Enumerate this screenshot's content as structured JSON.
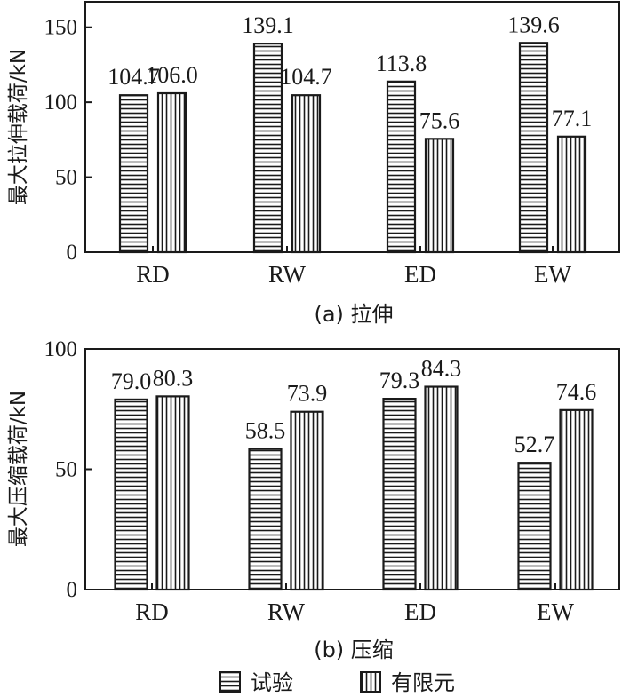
{
  "legend": {
    "test": "试验",
    "fem": "有限元"
  },
  "chart_data": [
    {
      "type": "bar",
      "caption": "(a) 拉伸",
      "ylabel": "最大拉伸载荷/kN",
      "ylim": [
        0,
        167
      ],
      "yticks": [
        0,
        50,
        100,
        150
      ],
      "categories": [
        "RD",
        "RW",
        "ED",
        "EW"
      ],
      "series": [
        {
          "name": "试验",
          "pattern": "horizontal-lines",
          "values": [
            104.7,
            139.1,
            113.8,
            139.6
          ],
          "labels": [
            "104.7",
            "139.1",
            "113.8",
            "139.6"
          ]
        },
        {
          "name": "有限元",
          "pattern": "vertical-lines",
          "values": [
            106.0,
            104.7,
            75.6,
            77.1
          ],
          "labels": [
            "106.0",
            "104.7",
            "75.6",
            "77.1"
          ]
        }
      ]
    },
    {
      "type": "bar",
      "caption": "(b) 压缩",
      "ylabel": "最大压缩载荷/kN",
      "ylim": [
        0,
        100
      ],
      "yticks": [
        0,
        50,
        100
      ],
      "categories": [
        "RD",
        "RW",
        "ED",
        "EW"
      ],
      "series": [
        {
          "name": "试验",
          "pattern": "horizontal-lines",
          "values": [
            79.0,
            58.5,
            79.3,
            52.7
          ],
          "labels": [
            "79.0",
            "58.5",
            "79.3",
            "52.7"
          ]
        },
        {
          "name": "有限元",
          "pattern": "vertical-lines",
          "values": [
            80.3,
            73.9,
            84.3,
            74.6
          ],
          "labels": [
            "80.3",
            "73.9",
            "84.3",
            "74.6"
          ]
        }
      ]
    }
  ]
}
